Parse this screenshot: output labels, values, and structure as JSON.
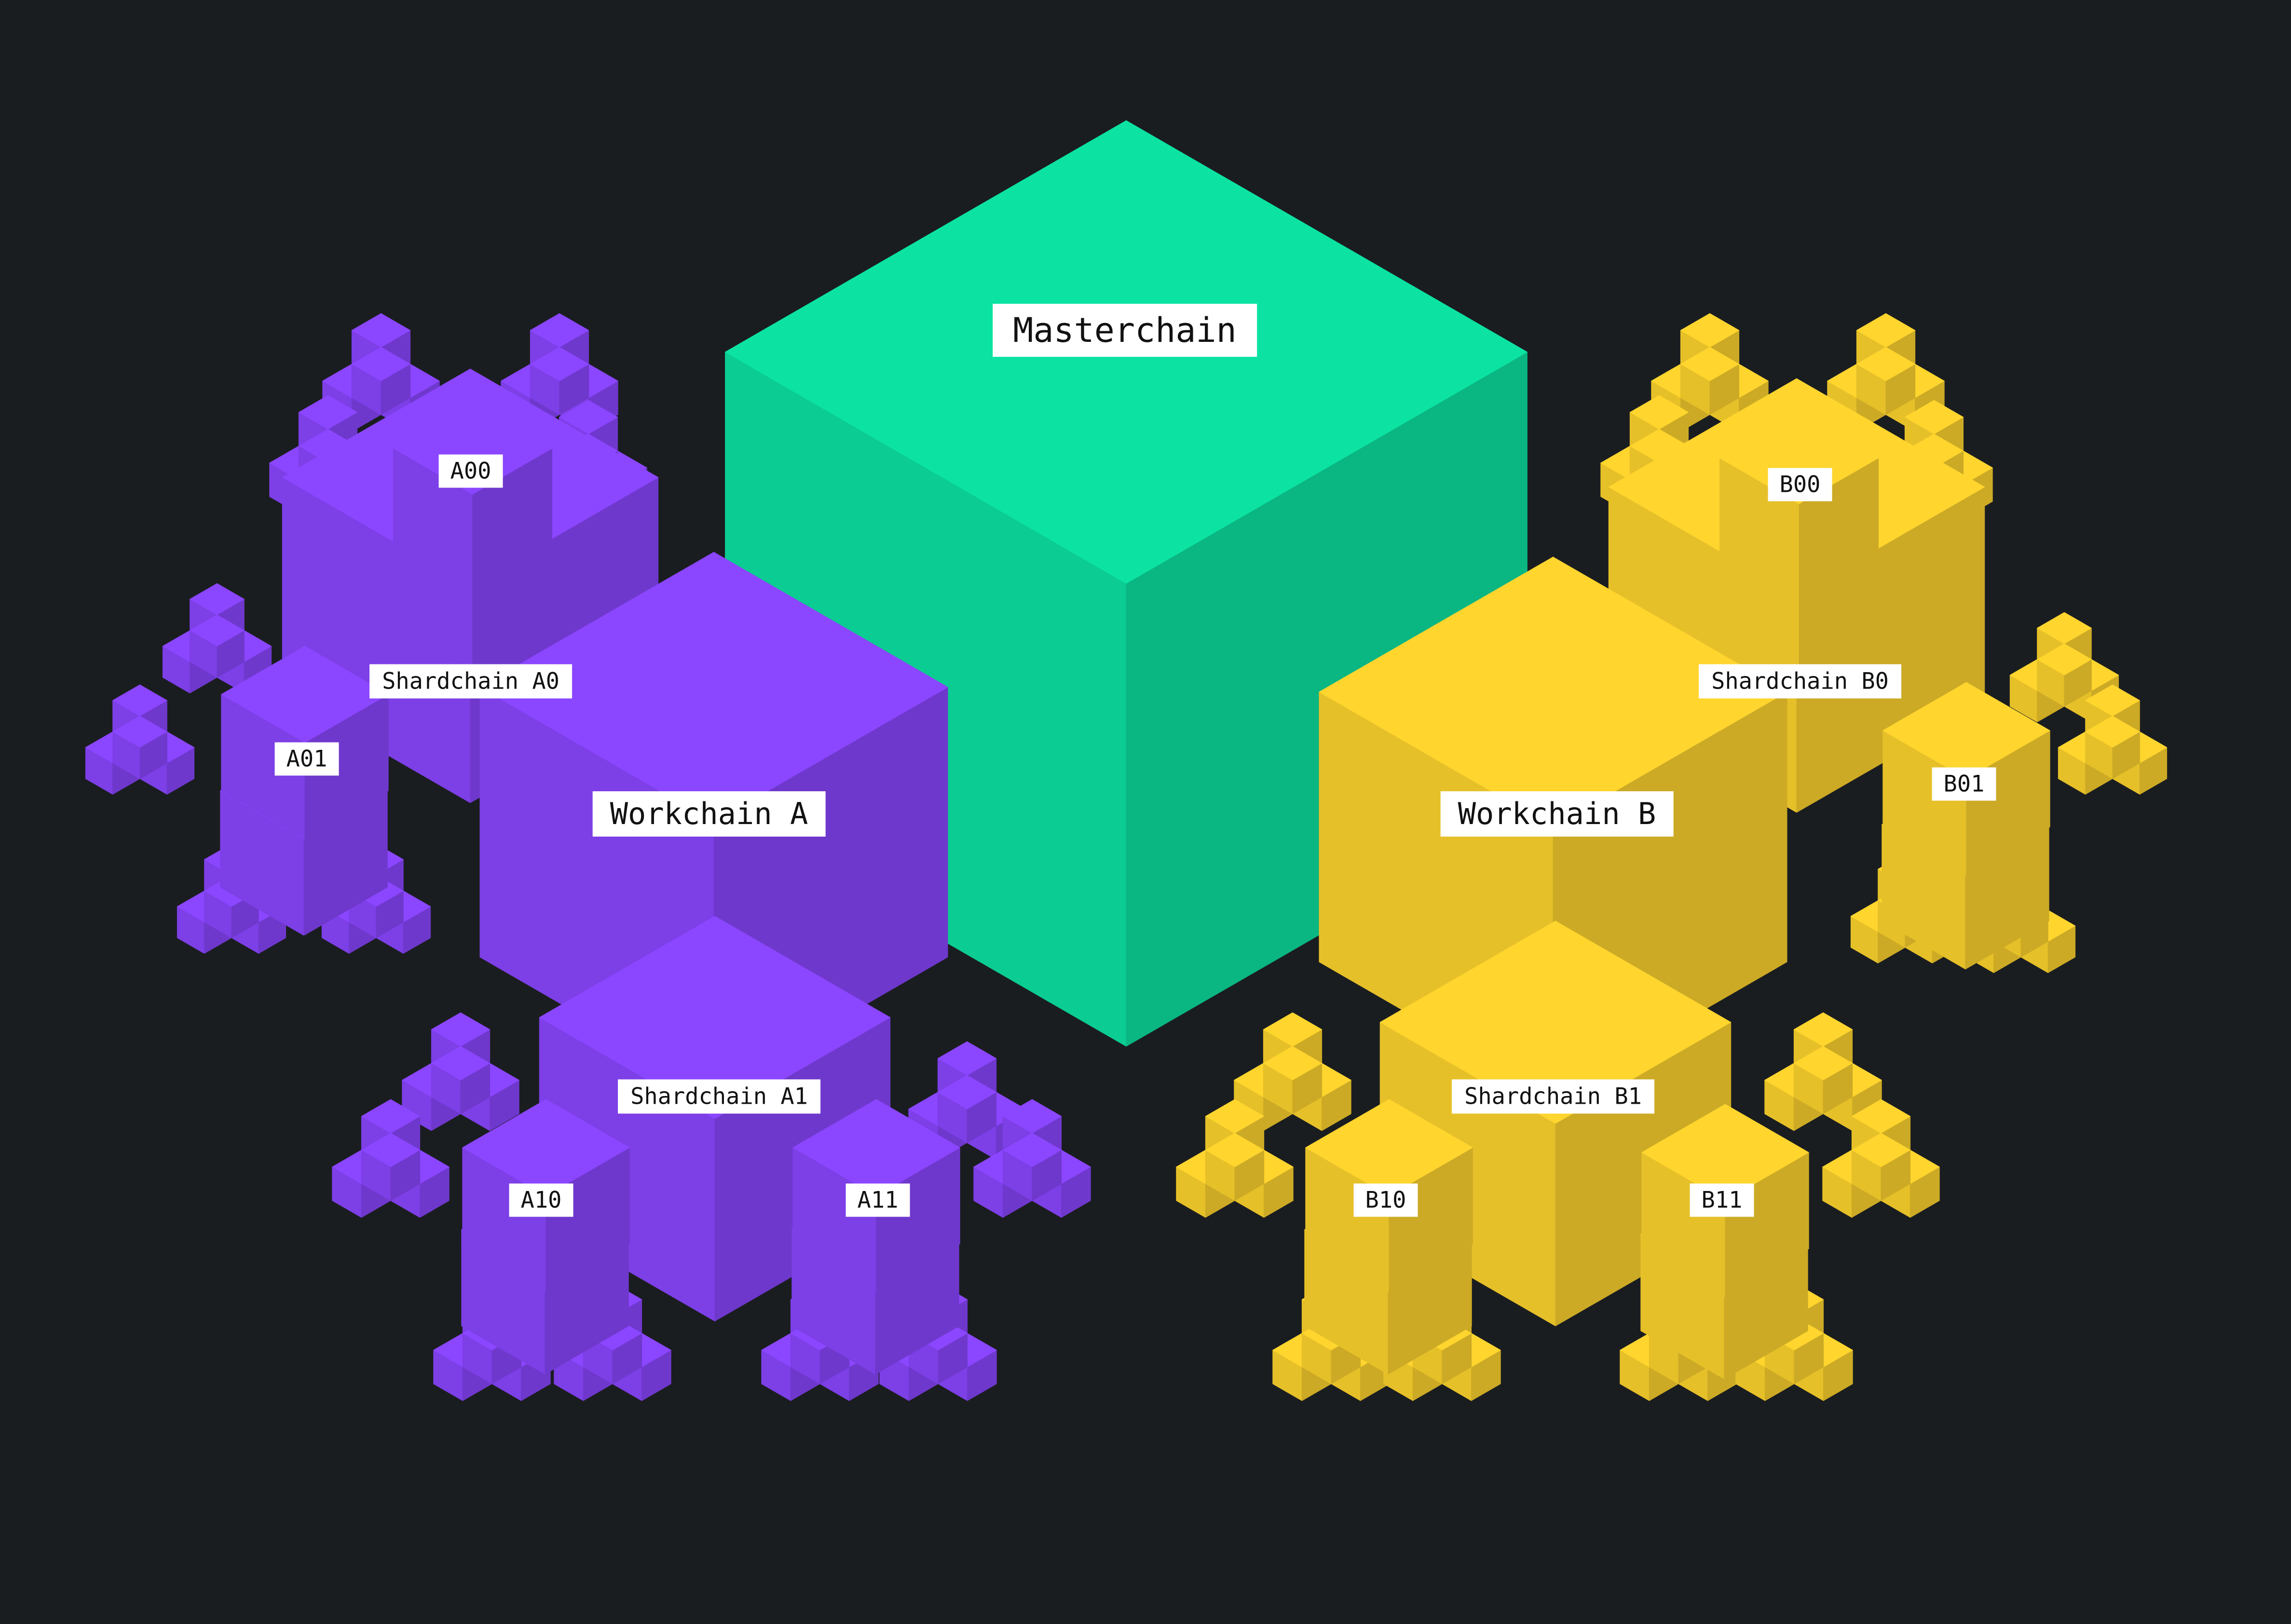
{
  "diagram": {
    "masterchain": {
      "label": "Masterchain",
      "color": "#0ce3a2"
    },
    "workchain_a": {
      "label": "Workchain A",
      "color": "#8b46ff",
      "shardchains": [
        {
          "label": "Shardchain A0",
          "sub": [
            "A00",
            "A01"
          ]
        },
        {
          "label": "Shardchain A1",
          "sub": [
            "A10",
            "A11"
          ]
        }
      ]
    },
    "workchain_b": {
      "label": "Workchain B",
      "color": "#ffd52e",
      "shardchains": [
        {
          "label": "Shardchain B0",
          "sub": [
            "B00",
            "B01"
          ]
        },
        {
          "label": "Shardchain B1",
          "sub": [
            "B10",
            "B11"
          ]
        }
      ]
    },
    "background": "#1a1d20"
  }
}
